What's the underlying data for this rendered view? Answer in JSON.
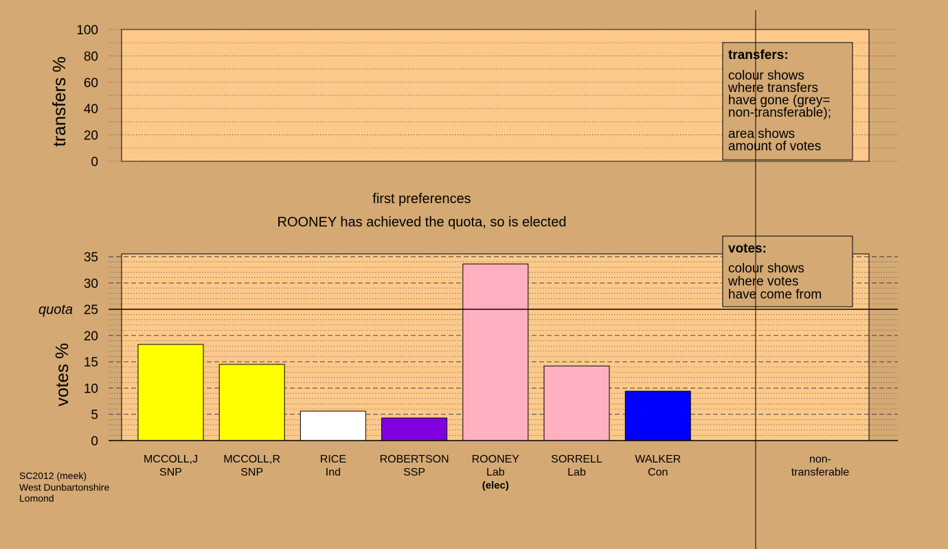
{
  "chart_data": [
    {
      "type": "bar",
      "name": "transfers",
      "ylabel": "transfers %",
      "ylim": [
        0,
        100
      ],
      "yticks": [
        0,
        20,
        40,
        60,
        80,
        100
      ],
      "values": [],
      "legend": {
        "title": "transfers:",
        "lines": [
          "colour shows",
          "where transfers",
          "have gone (grey=",
          "non-transferable);"
        ],
        "lines2": [
          "area shows",
          "amount of votes"
        ]
      }
    },
    {
      "type": "bar",
      "name": "votes",
      "ylabel": "votes %",
      "ylim": [
        0,
        35
      ],
      "yticks": [
        0,
        5,
        10,
        15,
        20,
        25,
        30,
        35
      ],
      "quota": 25,
      "quota_label": "quota",
      "categories": [
        "MCCOLL,J",
        "MCCOLL,R",
        "RICE",
        "ROBERTSON",
        "ROONEY",
        "SORRELL",
        "WALKER"
      ],
      "parties": [
        "SNP",
        "SNP",
        "Ind",
        "SSP",
        "Lab",
        "Lab",
        "Con"
      ],
      "notes": [
        "",
        "",
        "",
        "",
        "(elec)",
        "",
        ""
      ],
      "values": [
        18.3,
        14.5,
        5.6,
        4.3,
        33.6,
        14.2,
        9.4
      ],
      "colors": [
        "#ffff00",
        "#ffff00",
        "#ffffff",
        "#8000e0",
        "#ffb0c0",
        "#ffb0c0",
        "#0000ff"
      ],
      "nontransferable_label": [
        "non-",
        "transferable"
      ],
      "legend": {
        "title": "votes:",
        "lines": [
          "colour shows",
          "where votes",
          "have come from"
        ]
      }
    }
  ],
  "status": {
    "stage": "first preferences",
    "message": "ROONEY has achieved the quota, so is elected"
  },
  "footer": [
    "SC2012 (meek)",
    "West Dunbartonshire",
    "Lomond"
  ]
}
